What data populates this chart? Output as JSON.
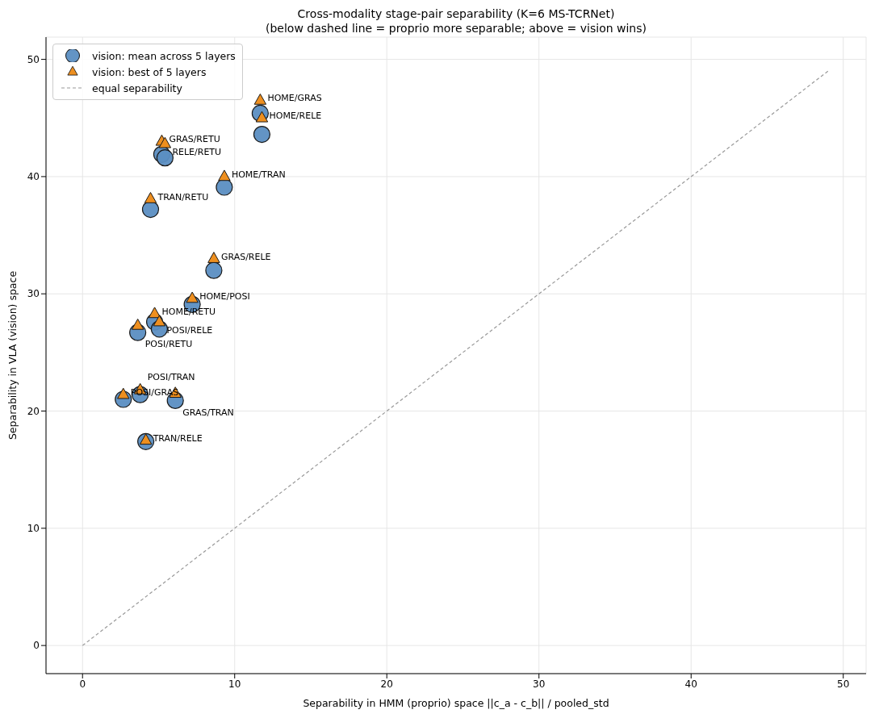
{
  "chart_data": {
    "type": "scatter",
    "title": "Cross-modality stage-pair separability (K=6 MS-TCRNet)",
    "subtitle": "(below dashed line = proprio more separable; above = vision wins)",
    "xlabel": "Separability in HMM (proprio) space  ||c_a - c_b|| / pooled_std",
    "ylabel": "Separability in VLA (vision) space",
    "x": [
      11.68,
      11.79,
      5.21,
      5.42,
      9.32,
      4.47,
      8.63,
      7.21,
      4.74,
      5.05,
      3.63,
      2.68,
      3.79,
      6.1,
      4.16
    ],
    "series": [
      {
        "name": "vision: mean across 5 layers",
        "color": "#5b8ec2",
        "marker": "circle",
        "values": [
          45.4,
          43.6,
          41.9,
          41.6,
          39.1,
          37.2,
          32.0,
          29.1,
          27.6,
          27.0,
          26.7,
          21.0,
          21.4,
          20.9,
          17.4
        ]
      },
      {
        "name": "vision: best of 5 layers",
        "color": "#ee8f1f",
        "marker": "triangle",
        "values": [
          46.5,
          45.0,
          43.0,
          42.8,
          40.0,
          38.1,
          33.0,
          29.6,
          28.3,
          27.6,
          27.3,
          21.4,
          21.8,
          21.5,
          17.5
        ]
      },
      {
        "name": "equal separability",
        "type": "line",
        "color": "#999999",
        "line_style": "dashed",
        "marker": "none",
        "x": [
          0,
          49
        ],
        "values": [
          0,
          49
        ]
      }
    ],
    "annotations": [
      {
        "text": "HOME/GRAS",
        "x": 11.68,
        "y": 46.5
      },
      {
        "text": "HOME/RELE",
        "x": 11.79,
        "y": 45.0
      },
      {
        "text": "GRAS/RETU",
        "x": 5.21,
        "y": 43.0
      },
      {
        "text": "RELE/RETU",
        "x": 5.42,
        "y": 42.8
      },
      {
        "text": "HOME/TRAN",
        "x": 9.32,
        "y": 40.0
      },
      {
        "text": "TRAN/RETU",
        "x": 4.47,
        "y": 38.1
      },
      {
        "text": "GRAS/RELE",
        "x": 8.63,
        "y": 33.0
      },
      {
        "text": "HOME/POSI",
        "x": 7.21,
        "y": 29.6
      },
      {
        "text": "HOME/RETU",
        "x": 4.74,
        "y": 28.3
      },
      {
        "text": "POSI/RELE",
        "x": 5.05,
        "y": 27.6
      },
      {
        "text": "POSI/RETU",
        "x": 3.63,
        "y": 27.3
      },
      {
        "text": "POSI/GRAS",
        "x": 2.68,
        "y": 21.4
      },
      {
        "text": "POSI/TRAN",
        "x": 3.79,
        "y": 21.8
      },
      {
        "text": "GRAS/TRAN",
        "x": 6.1,
        "y": 21.5
      },
      {
        "text": "TRAN/RELE",
        "x": 4.16,
        "y": 17.5
      }
    ],
    "xlim": [
      -2.4,
      51.5
    ],
    "ylim": [
      -2.4,
      51.9
    ],
    "xticks": [
      0,
      10,
      20,
      30,
      40,
      50
    ],
    "yticks": [
      0,
      10,
      20,
      30,
      40,
      50
    ],
    "grid": true,
    "legend": "top left"
  }
}
